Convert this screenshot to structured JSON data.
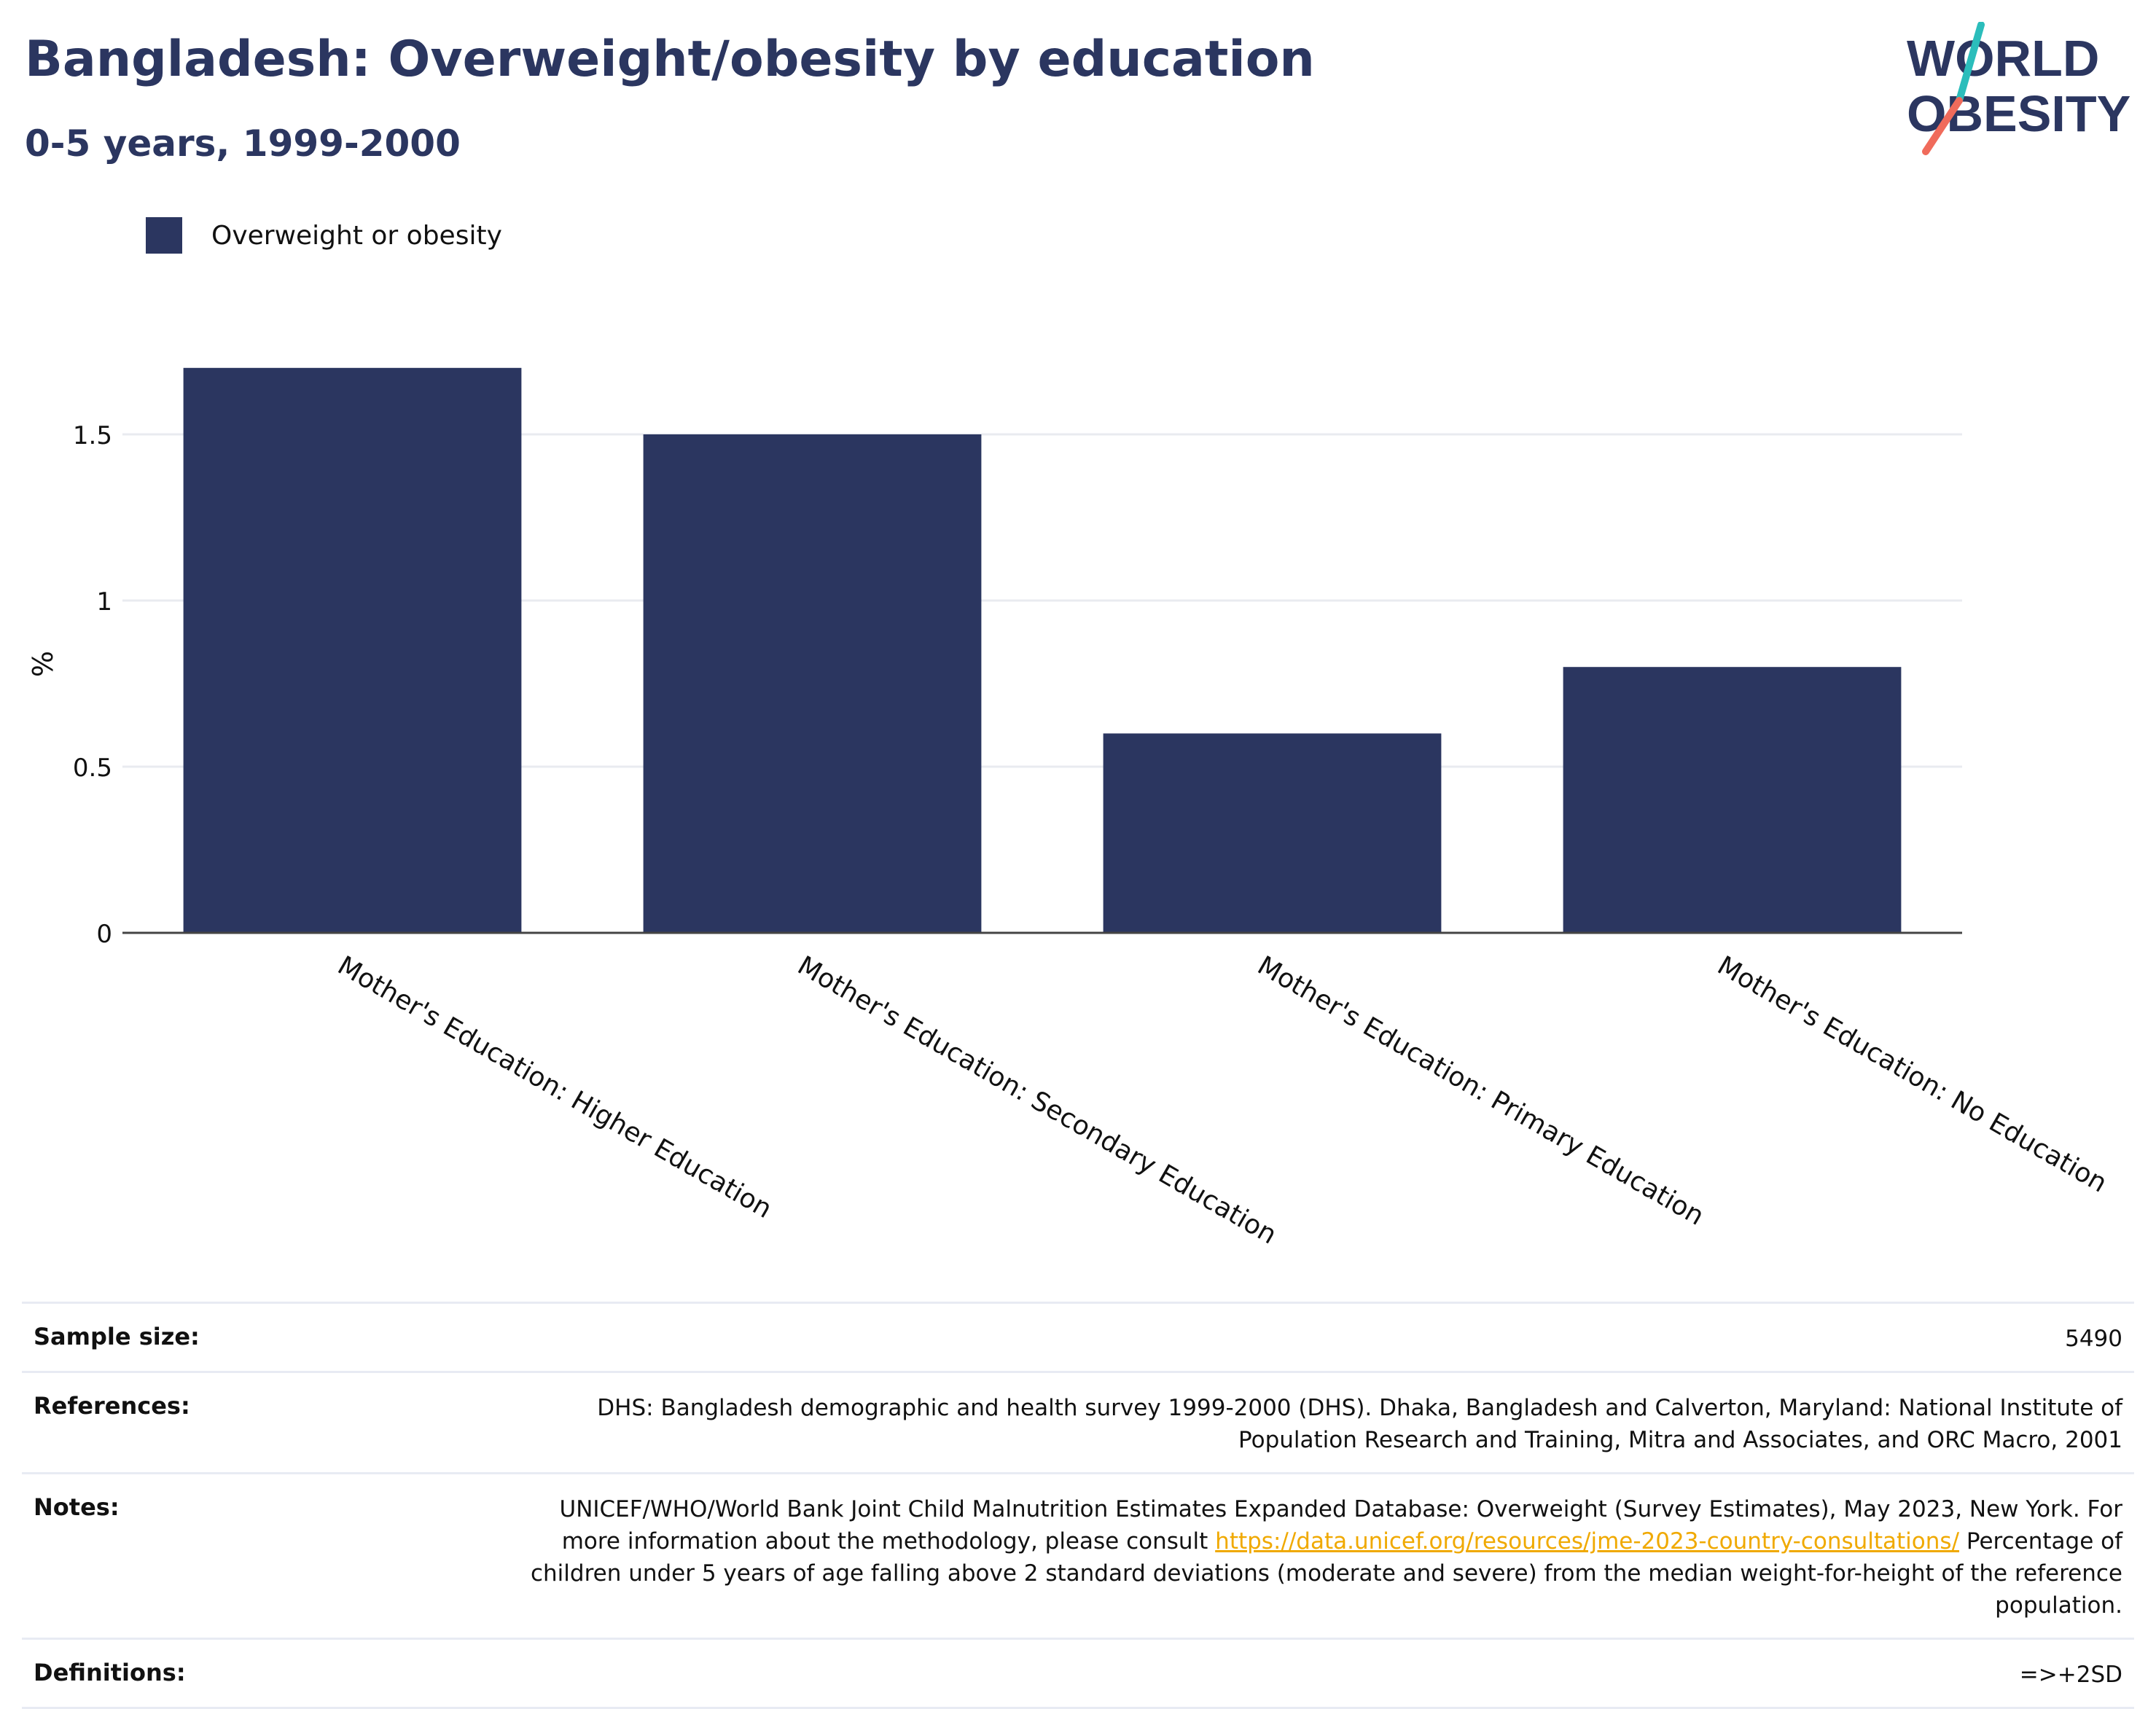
{
  "header": {
    "title": "Bangladesh: Overweight/obesity by education",
    "subtitle": "0-5 years, 1999-2000",
    "logo_line1": "WORLD",
    "logo_line2": "OBESITY"
  },
  "colors": {
    "bar": "#2b3660",
    "title": "#2b3660",
    "logo_teal": "#2bbdbb",
    "logo_coral": "#f06b5b",
    "link": "#f0a900"
  },
  "chart_data": {
    "type": "bar",
    "title": "Bangladesh: Overweight/obesity by education",
    "subtitle": "0-5 years, 1999-2000",
    "xlabel": "",
    "ylabel": "%",
    "categories": [
      "Mother's Education: Higher Education",
      "Mother's Education: Secondary Education",
      "Mother's Education: Primary Education",
      "Mother's Education: No Education"
    ],
    "series": [
      {
        "name": "Overweight or obesity",
        "values": [
          1.7,
          1.5,
          0.6,
          0.8
        ]
      }
    ],
    "yticks": [
      {
        "value": 0,
        "label": "0"
      },
      {
        "value": 0.5,
        "label": "0.5"
      },
      {
        "value": 1,
        "label": "1"
      },
      {
        "value": 1.5,
        "label": "1.5"
      }
    ],
    "ylim": [
      0,
      1.75
    ],
    "grid": true,
    "legend_position": "top-left"
  },
  "info": {
    "sample_size_label": "Sample size:",
    "sample_size_value": "5490",
    "references_label": "References:",
    "references_value": "DHS: Bangladesh demographic and health survey 1999-2000 (DHS). Dhaka, Bangladesh and Calverton, Maryland: National Institute of Population Research and Training, Mitra and Associates, and ORC Macro, 2001",
    "notes_label": "Notes:",
    "notes_text_before": "UNICEF/WHO/World Bank Joint Child Malnutrition Estimates Expanded Database: Overweight (Survey Estimates), May 2023, New York. For more information about the methodology, please consult ",
    "notes_link": "https://data.unicef.org/resources/jme-2023-country-consultations/",
    "notes_text_after": " Percentage of children under 5 years of age falling above 2 standard deviations (moderate and severe) from the median weight-for-height of the reference population.",
    "definitions_label": "Definitions:",
    "definitions_value": "=>+2SD"
  }
}
